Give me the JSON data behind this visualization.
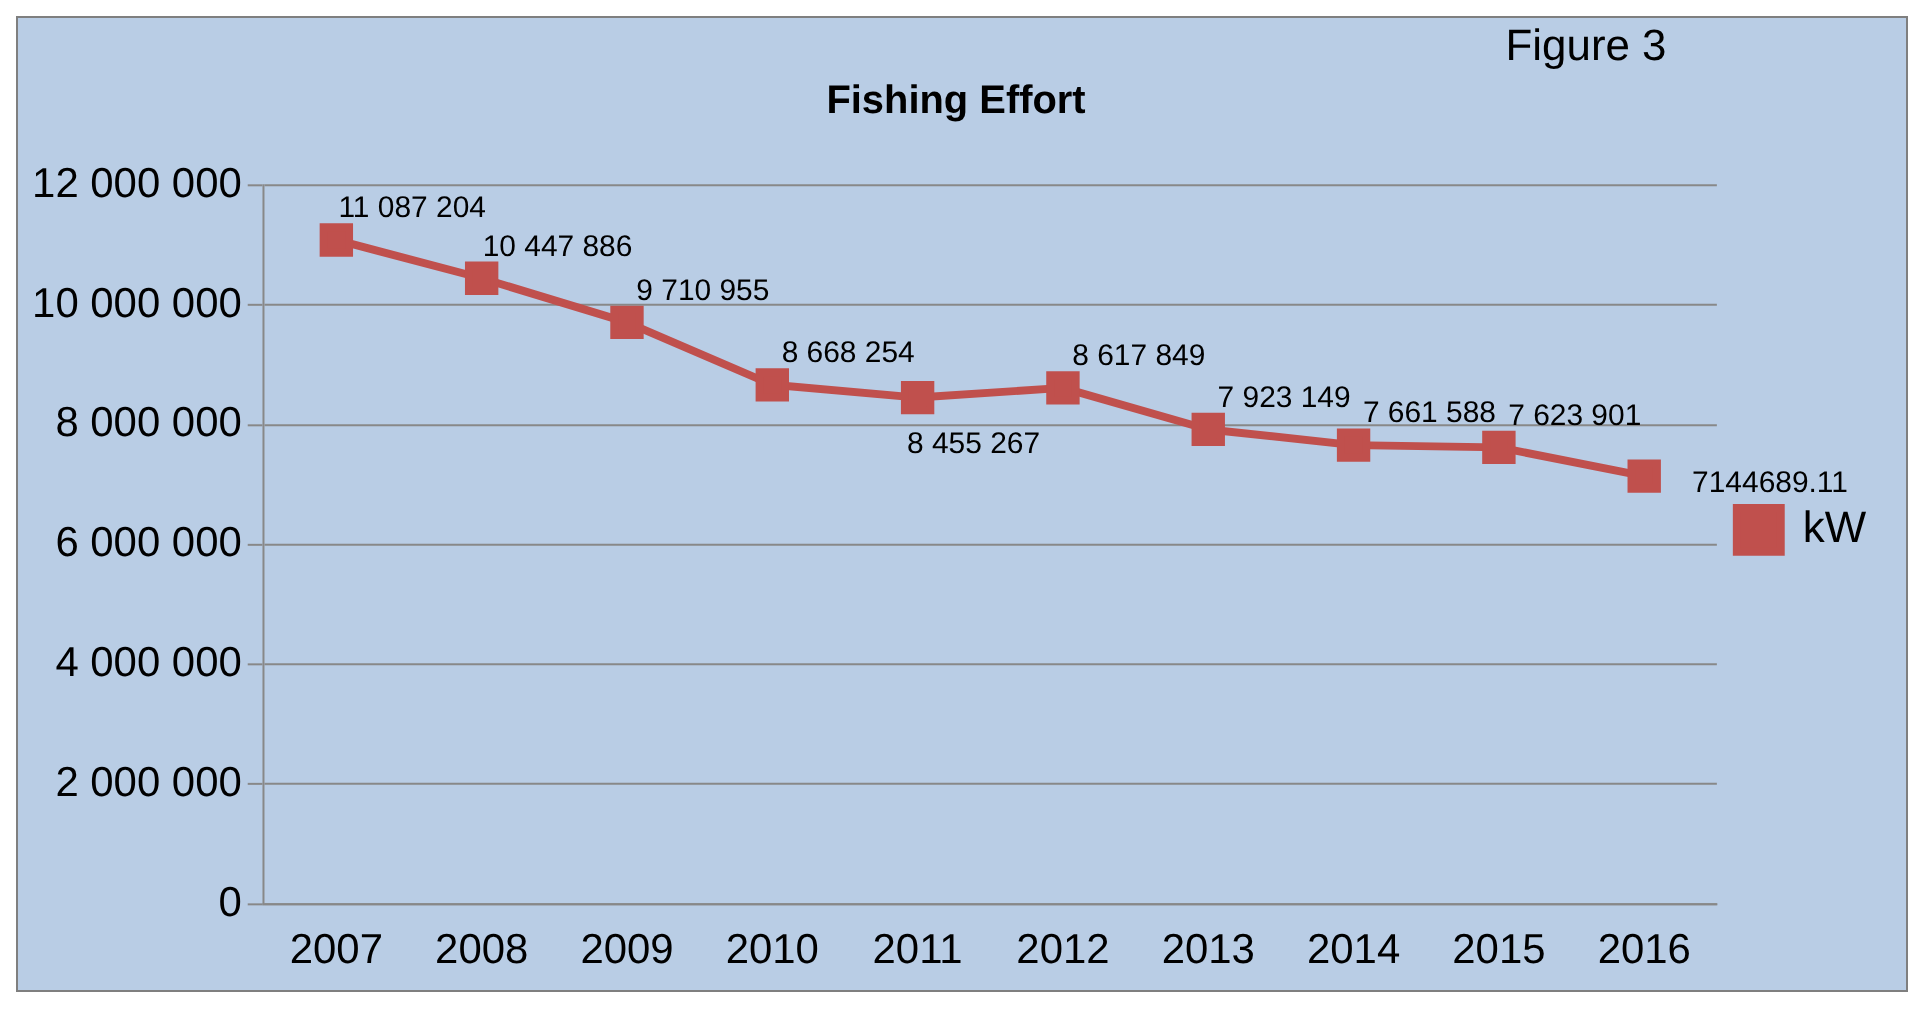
{
  "chart_data": {
    "type": "line",
    "title": "Fishing Effort",
    "annotations": [
      "Figure 3"
    ],
    "categories": [
      "2007",
      "2008",
      "2009",
      "2010",
      "2011",
      "2012",
      "2013",
      "2014",
      "2015",
      "2016"
    ],
    "series": [
      {
        "name": "kW",
        "color": "#c0504d",
        "values": [
          11087204,
          10447886,
          9710955,
          8668254,
          8455267,
          8617849,
          7923149,
          7661588,
          7623901,
          7144689.11
        ],
        "value_labels": [
          "11 087 204",
          "10 447 886",
          "9 710 955",
          "8 668 254",
          "8 455 267",
          "8 617 849",
          "7 923 149",
          "7 661 588",
          "7 623 901",
          "7144689.11"
        ]
      }
    ],
    "ylim": [
      0,
      12000000
    ],
    "yticks": [
      {
        "value": 0,
        "label": "0"
      },
      {
        "value": 2000000,
        "label": "2 000 000"
      },
      {
        "value": 4000000,
        "label": "4 000 000"
      },
      {
        "value": 6000000,
        "label": "6 000 000"
      },
      {
        "value": 8000000,
        "label": "8 000 000"
      },
      {
        "value": 10000000,
        "label": "10 000 000"
      },
      {
        "value": 12000000,
        "label": "12 000 000"
      }
    ],
    "grid": "y",
    "legend": "right",
    "marker": "square",
    "line_style": "solid"
  }
}
